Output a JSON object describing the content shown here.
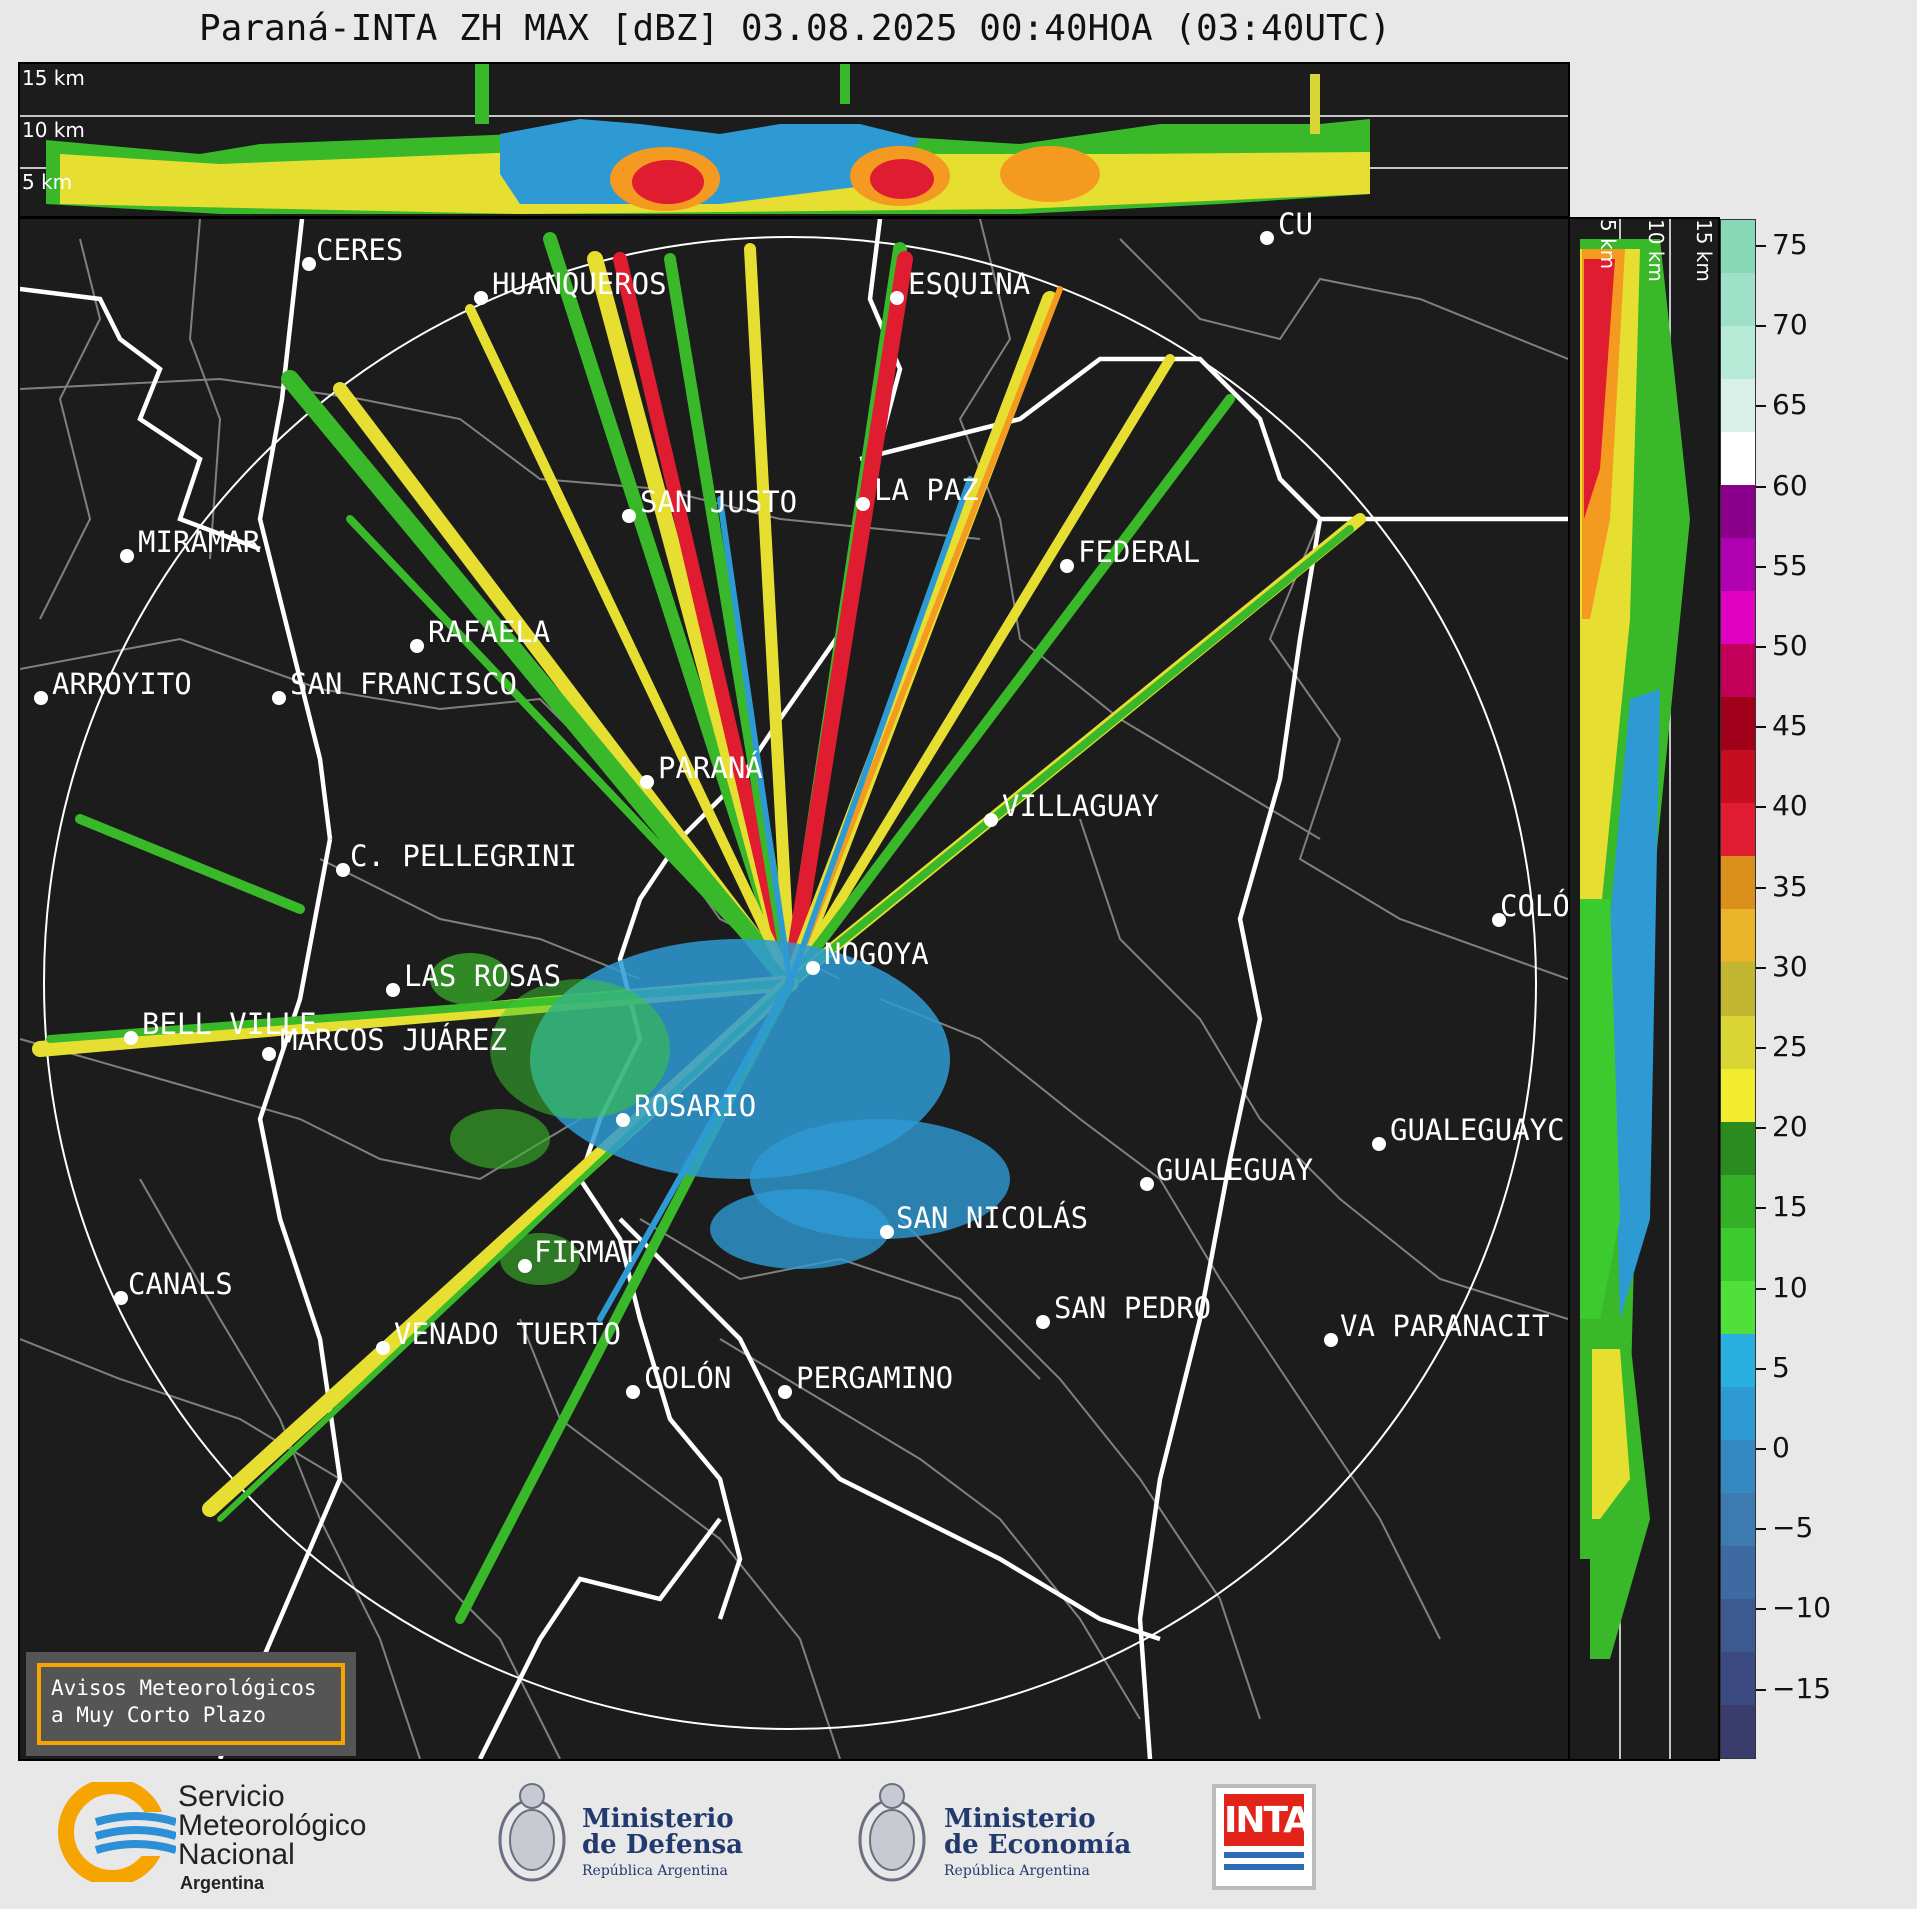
{
  "title": "Paraná-INTA ZH MAX [dBZ] 03.08.2025 00:40HOA (03:40UTC)",
  "top_panel": {
    "height_labels": [
      "15 km",
      "10 km",
      "5 km"
    ]
  },
  "side_panel": {
    "height_labels": [
      "5 km",
      "10 km",
      "15 km"
    ]
  },
  "cities": [
    {
      "name": "CERES"
    },
    {
      "name": "HUANQUEROS"
    },
    {
      "name": "ESQUINA"
    },
    {
      "name": "CU"
    },
    {
      "name": "SAN JUSTO"
    },
    {
      "name": "LA PAZ"
    },
    {
      "name": "MIRAMAR"
    },
    {
      "name": "FEDERAL"
    },
    {
      "name": "RAFAELA"
    },
    {
      "name": "ARROYITO"
    },
    {
      "name": "SAN FRANCISCO"
    },
    {
      "name": "PARANÁ"
    },
    {
      "name": "VILLAGUAY"
    },
    {
      "name": "C. PELLEGRINI"
    },
    {
      "name": "COLÓ"
    },
    {
      "name": "NOGOYA"
    },
    {
      "name": "LAS ROSAS"
    },
    {
      "name": "BELL VILLE"
    },
    {
      "name": "MARCOS JUÁREZ"
    },
    {
      "name": "ROSARIO"
    },
    {
      "name": "GUALEGUAYC"
    },
    {
      "name": "GUALEGUAY"
    },
    {
      "name": "SAN NICOLÁS"
    },
    {
      "name": "FIRMAT"
    },
    {
      "name": "CANALS"
    },
    {
      "name": "SAN PEDRO"
    },
    {
      "name": "VENADO TUERTO"
    },
    {
      "name": "VA PARANACIT"
    },
    {
      "name": "COLÓN"
    },
    {
      "name": "PERGAMINO"
    }
  ],
  "colorbar": {
    "ticks": [
      "75",
      "70",
      "65",
      "60",
      "55",
      "50",
      "45",
      "40",
      "35",
      "30",
      "25",
      "20",
      "15",
      "10",
      "5",
      "0",
      "−5",
      "−10",
      "−15"
    ],
    "colors": [
      "#3a3d6b",
      "#3b4a80",
      "#3c5a90",
      "#3d6aa0",
      "#3d7ab0",
      "#3688c2",
      "#2e9ad4",
      "#2ab0e0",
      "#4fe03a",
      "#3ccb2e",
      "#34b026",
      "#2a8c1f",
      "#f2ec30",
      "#d9d535",
      "#c2b530",
      "#e8b52a",
      "#d98f1a",
      "#e01c30",
      "#c50f20",
      "#a0001a",
      "#c2005a",
      "#e000c0",
      "#b000b0",
      "#8b008b",
      "#ffffff",
      "#d8f0e8",
      "#b8ead8",
      "#9ee0c8",
      "#88d8b8"
    ]
  },
  "notice": {
    "line1": "Avisos Meteorológicos",
    "line2": "a Muy Corto Plazo"
  },
  "footer": {
    "smn_line1": "Servicio",
    "smn_line2": "Meteorológico",
    "smn_line3": "Nacional",
    "smn_line4": "Argentina",
    "defensa_line1": "Ministerio",
    "defensa_line2": "de Defensa",
    "defensa_sub": "República Argentina",
    "economia_line1": "Ministerio",
    "economia_line2": "de Economía",
    "economia_sub": "República Argentina",
    "inta": "INTA"
  }
}
